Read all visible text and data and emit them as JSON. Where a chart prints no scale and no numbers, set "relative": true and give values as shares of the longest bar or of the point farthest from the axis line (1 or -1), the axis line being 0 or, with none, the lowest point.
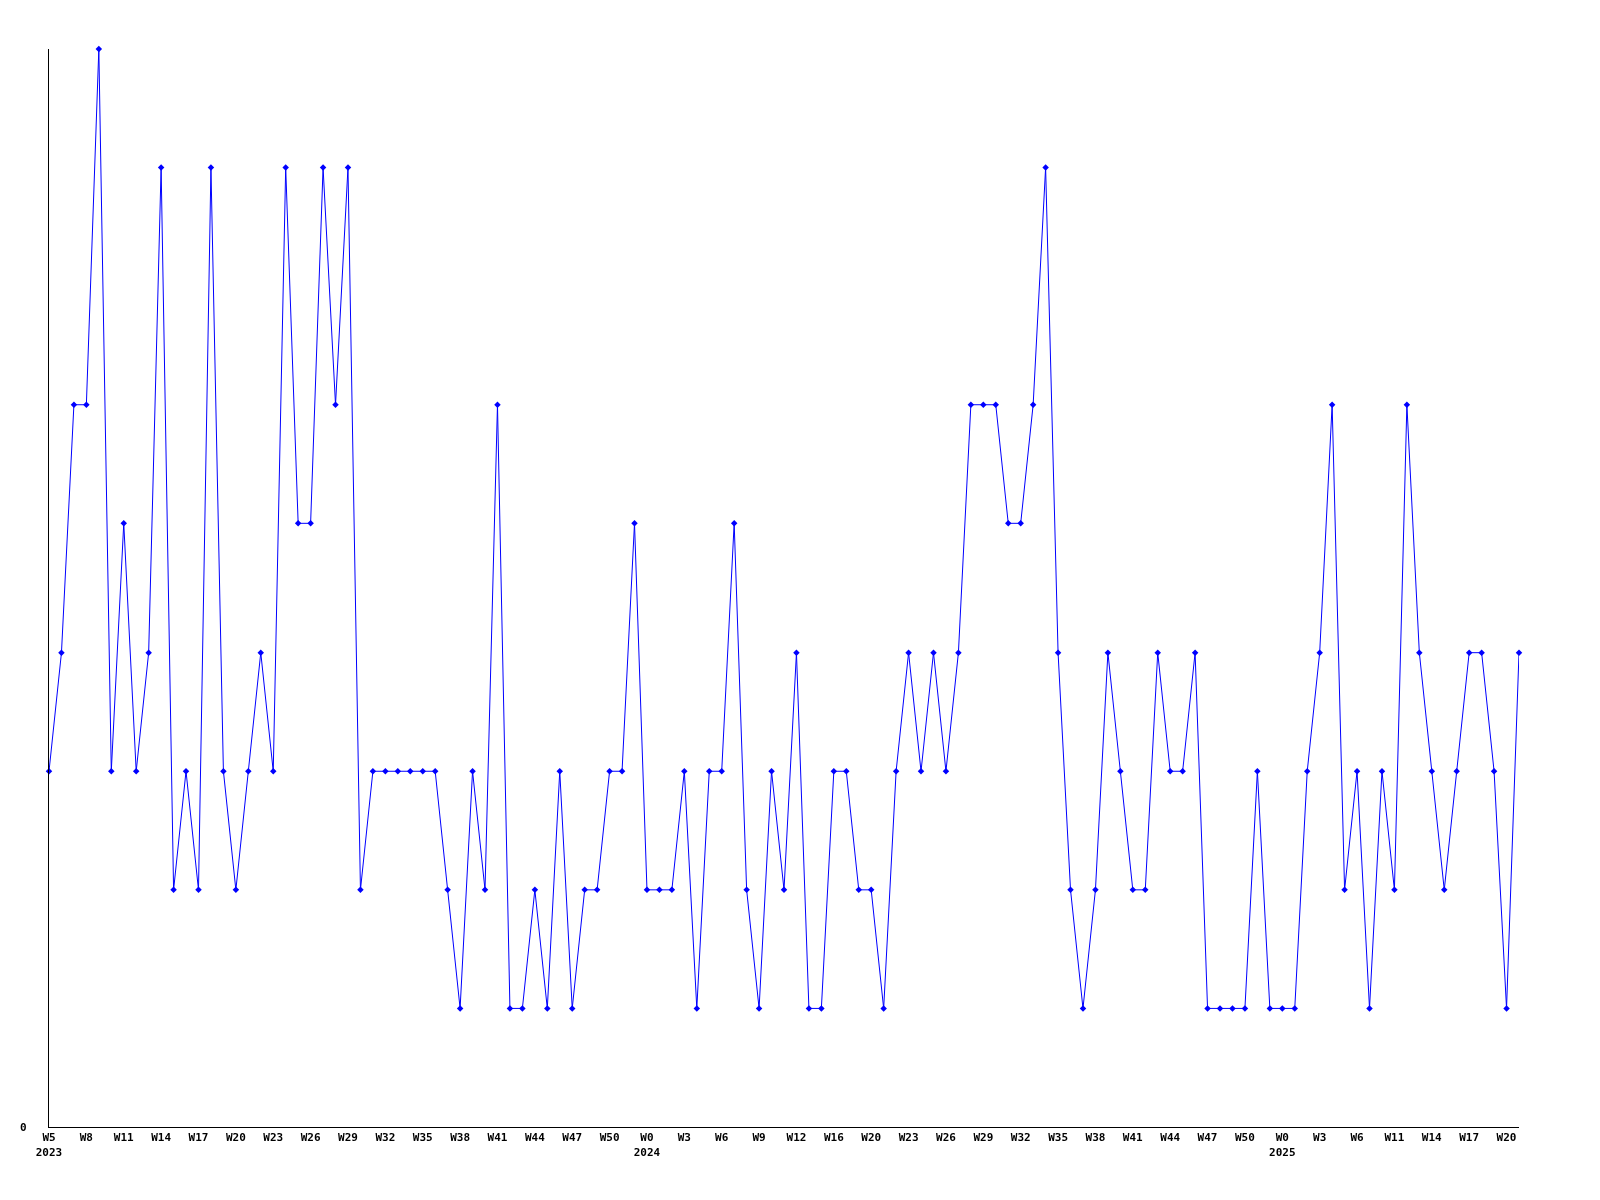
{
  "chart_data": {
    "type": "line",
    "relative": true,
    "marker": "diamond",
    "line_style": "solid",
    "annotations": [
      "0"
    ],
    "categories": [
      "W5\n2023",
      null,
      null,
      "W8",
      null,
      null,
      "W11",
      null,
      null,
      "W14",
      null,
      null,
      "W17",
      null,
      null,
      "W20",
      null,
      null,
      "W23",
      null,
      null,
      "W26",
      null,
      null,
      "W29",
      null,
      null,
      "W32",
      null,
      null,
      "W35",
      null,
      null,
      "W38",
      null,
      null,
      "W41",
      null,
      null,
      "W44",
      null,
      null,
      "W47",
      null,
      null,
      "W50",
      null,
      null,
      "W0\n2024",
      null,
      null,
      "W3",
      null,
      null,
      "W6",
      null,
      null,
      "W9",
      null,
      null,
      "W12",
      null,
      null,
      "W16",
      null,
      null,
      "W20",
      null,
      null,
      "W23",
      null,
      null,
      "W26",
      null,
      null,
      "W29",
      null,
      null,
      "W32",
      null,
      null,
      "W35",
      null,
      null,
      "W38",
      null,
      null,
      "W41",
      null,
      null,
      "W44",
      null,
      null,
      "W47",
      null,
      null,
      "W50",
      null,
      null,
      "W0\n2025",
      null,
      null,
      "W3",
      null,
      null,
      "W6",
      null,
      null,
      "W11",
      null,
      null,
      "W14",
      null,
      null,
      "W17",
      null,
      null,
      "W20",
      null
    ],
    "series": [
      {
        "color": "#0000ff",
        "values": [
          0.33,
          0.44,
          0.67,
          0.67,
          1,
          0.33,
          0.56,
          0.33,
          0.44,
          0.89,
          0.22,
          0.33,
          0.22,
          0.89,
          0.33,
          0.22,
          0.33,
          0.44,
          0.33,
          0.89,
          0.56,
          0.56,
          0.89,
          0.67,
          0.89,
          0.22,
          0.33,
          0.33,
          0.33,
          0.33,
          0.33,
          0.33,
          0.22,
          0.11,
          0.33,
          0.22,
          0.67,
          0.11,
          0.11,
          0.22,
          0.11,
          0.33,
          0.11,
          0.22,
          0.22,
          0.33,
          0.33,
          0.56,
          0.22,
          0.22,
          0.22,
          0.33,
          0.11,
          0.33,
          0.33,
          0.56,
          0.22,
          0.11,
          0.33,
          0.22,
          0.44,
          0.11,
          0.11,
          0.33,
          0.33,
          0.22,
          0.22,
          0.11,
          0.33,
          0.44,
          0.33,
          0.44,
          0.33,
          0.44,
          0.67,
          0.67,
          0.67,
          0.56,
          0.56,
          0.67,
          0.89,
          0.44,
          0.22,
          0.11,
          0.22,
          0.44,
          0.33,
          0.22,
          0.22,
          0.44,
          0.33,
          0.33,
          0.44,
          0.11,
          0.11,
          0.11,
          0.11,
          0.33,
          0.11,
          0.11,
          0.11,
          0.33,
          0.44,
          0.67,
          0.22,
          0.33,
          0.11,
          0.33,
          0.22,
          0.67,
          0.44,
          0.33,
          0.22,
          0.33,
          0.44,
          0.44,
          0.33,
          0.11,
          0.44
        ]
      }
    ]
  }
}
